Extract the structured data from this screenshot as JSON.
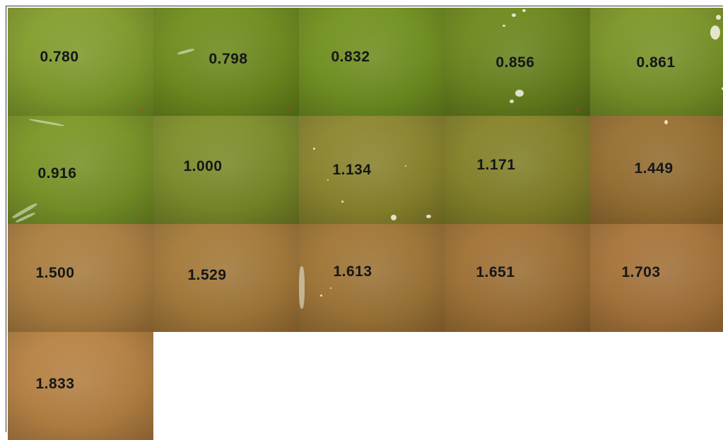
{
  "tiles": [
    {
      "value": "0.780",
      "scale_label": "1.0",
      "tone": [
        "#8fa83a",
        "#6e8a22"
      ]
    },
    {
      "value": "0.798",
      "scale_label": "1.0",
      "tone": [
        "#7c9a2a",
        "#5e7a18"
      ]
    },
    {
      "value": "0.832",
      "scale_label": "",
      "tone": [
        "#7d9c2a",
        "#62801c"
      ]
    },
    {
      "value": "0.856",
      "scale_label": "1.0",
      "tone": [
        "#7a9528",
        "#586f18"
      ]
    },
    {
      "value": "0.861",
      "scale_label": "1.0",
      "tone": [
        "#88a133",
        "#667f20"
      ]
    },
    {
      "value": "0.916",
      "scale_label": "1.0",
      "tone": [
        "#86a030",
        "#6a8422"
      ]
    },
    {
      "value": "1.000",
      "scale_label": "1.0",
      "tone": [
        "#8a9a36",
        "#6b7a22"
      ]
    },
    {
      "value": "1.134",
      "scale_label": "1.0",
      "tone": [
        "#958f3a",
        "#7d7726"
      ]
    },
    {
      "value": "1.171",
      "scale_label": "1.0",
      "tone": [
        "#8e8c34",
        "#767422"
      ]
    },
    {
      "value": "1.449",
      "scale_label": "1.0",
      "tone": [
        "#a07a3c",
        "#87622a"
      ]
    },
    {
      "value": "1.500",
      "scale_label": "1.0",
      "tone": [
        "#b4884a",
        "#9a7038"
      ]
    },
    {
      "value": "1.529",
      "scale_label": "1.0",
      "tone": [
        "#ae8444",
        "#946c32"
      ]
    },
    {
      "value": "1.613",
      "scale_label": "1.0",
      "tone": [
        "#aa8040",
        "#8e6830"
      ]
    },
    {
      "value": "1.651",
      "scale_label": "1.0",
      "tone": [
        "#aa7c40",
        "#8e642e"
      ]
    },
    {
      "value": "1.703",
      "scale_label": "1.0",
      "tone": [
        "#b07e44",
        "#946632"
      ]
    },
    {
      "value": "1.833",
      "scale_label": "1.0",
      "tone": [
        "#c08c4e",
        "#a4743a"
      ]
    }
  ]
}
